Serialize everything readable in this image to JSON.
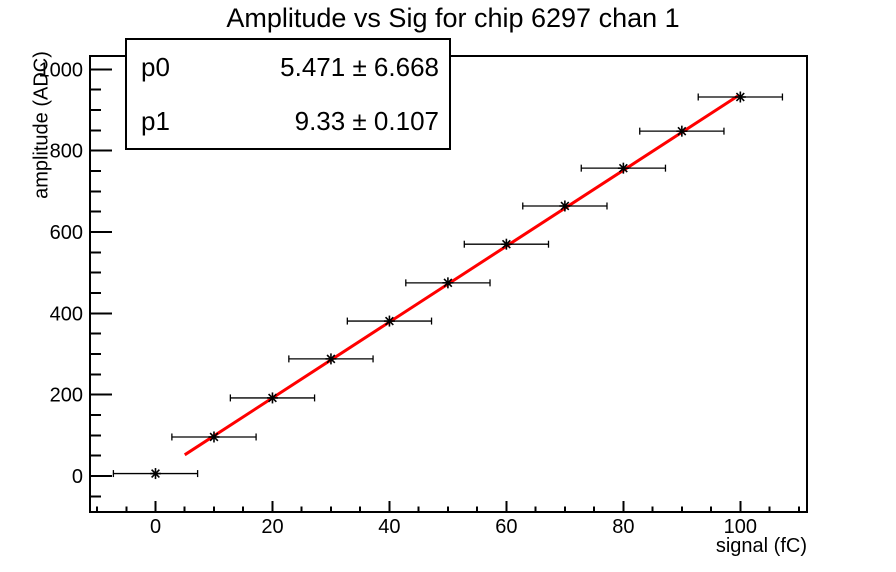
{
  "chart_data": {
    "type": "scatter",
    "title": "Amplitude vs Sig for chip 6297 chan 1",
    "xlabel": "signal (fC)",
    "ylabel": "amplitude (ADC)",
    "xlim": [
      -11.2,
      111.4
    ],
    "ylim": [
      -88.5,
      1032.8
    ],
    "x_major_ticks": [
      0,
      20,
      40,
      60,
      80,
      100
    ],
    "x_minor_step": 5,
    "y_major_ticks": [
      0,
      200,
      400,
      600,
      800,
      1000
    ],
    "y_minor_step": 50,
    "grid": false,
    "legend": "none",
    "frame_color": "#000000",
    "marker": "asterisk",
    "marker_color": "#000000",
    "points": {
      "x": [
        0,
        10,
        20,
        30,
        40,
        50,
        60,
        70,
        80,
        90,
        100
      ],
      "y": [
        6,
        96,
        192,
        288,
        381,
        475,
        570,
        664,
        757,
        848,
        932
      ],
      "xerr": 1.5
    },
    "fit": {
      "p0": 5.471,
      "p0_err": 6.668,
      "p1": 9.33,
      "p1_err": 0.107,
      "x_start": 5,
      "x_end": 99.6,
      "color": "#ff0000"
    },
    "stats_box": {
      "rows": [
        {
          "label": "p0",
          "value": "5.471 ± 6.668"
        },
        {
          "label": "p1",
          "value": "9.33 ± 0.107"
        }
      ]
    }
  }
}
